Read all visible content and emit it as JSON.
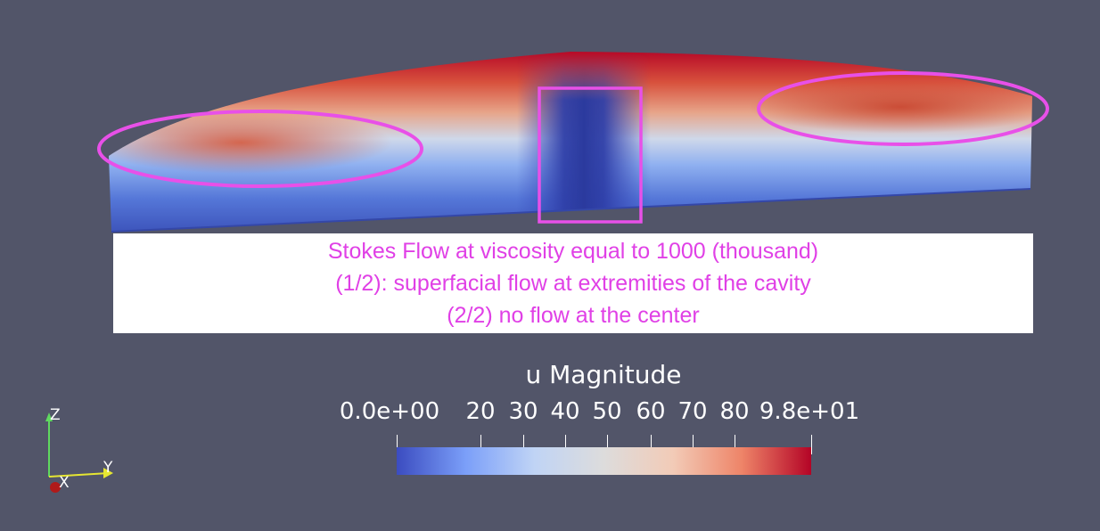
{
  "caption": {
    "lines": [
      "Stokes Flow at viscosity equal to 1000 (thousand)",
      "(1/2): superfacial flow at extremities of the cavity",
      "(2/2) no flow at the center"
    ],
    "color": "#e040e6"
  },
  "legend": {
    "title": "u Magnitude",
    "ticks": [
      "0.0e+00",
      "20",
      "30",
      "40",
      "50",
      "60",
      "70",
      "80",
      "9.8e+01"
    ],
    "colormap": [
      "#3b4cc0",
      "#7b9ff9",
      "#c0d4f5",
      "#dddcdc",
      "#f2cbb7",
      "#ee8468",
      "#b40426"
    ]
  },
  "axes": {
    "z": "Z",
    "y": "Y",
    "x": "X",
    "colors": {
      "z": "#5fd95f",
      "y": "#e6e632",
      "x": "#b01a1a"
    }
  },
  "annotations": {
    "highlight_color": "#e850e8"
  },
  "background": "#525569"
}
